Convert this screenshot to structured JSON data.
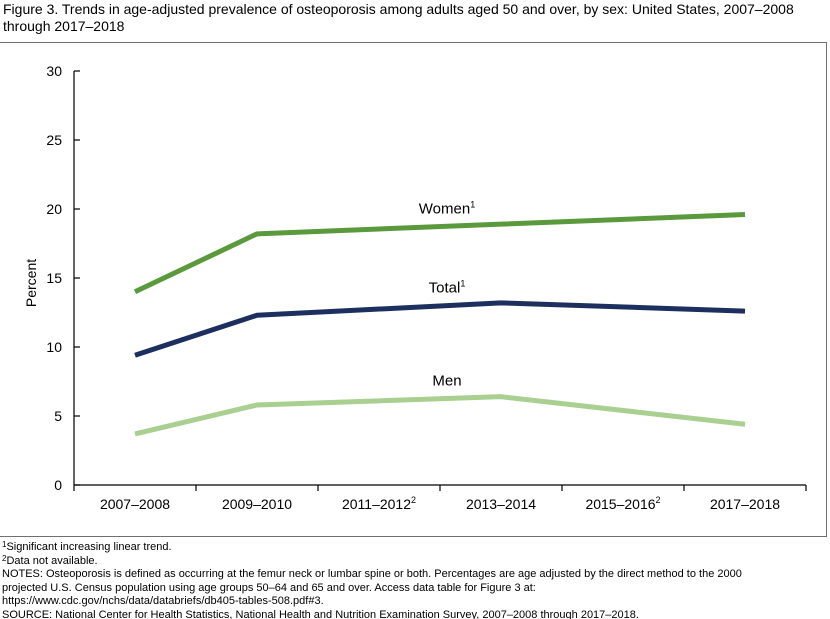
{
  "title": "Figure 3. Trends in age-adjusted prevalence of osteoporosis among adults aged 50 and over, by sex: United States, 2007–2008 through 2017–2018",
  "chart_data": {
    "type": "line",
    "title": "Trends in age-adjusted prevalence of osteoporosis among adults aged 50 and over, by sex: United States, 2007–2008 through 2017–2018",
    "xlabel": "",
    "ylabel": "Percent",
    "ylim": [
      0,
      30
    ],
    "yticks": [
      0,
      5,
      10,
      15,
      20,
      25,
      30
    ],
    "categories": [
      "2007–2008",
      "2009–2010",
      "2011–2012",
      "2013–2014",
      "2015–2016",
      "2017–2018"
    ],
    "category_superscripts": [
      "",
      "",
      "2",
      "",
      "2",
      ""
    ],
    "grid": false,
    "series": [
      {
        "name": "Women",
        "superscript": "1",
        "color": "#5a9a3d",
        "values": [
          14.0,
          18.2,
          null,
          18.9,
          null,
          19.6
        ]
      },
      {
        "name": "Total",
        "superscript": "1",
        "color": "#1c2f5e",
        "values": [
          9.4,
          12.3,
          null,
          13.2,
          null,
          12.6
        ]
      },
      {
        "name": "Men",
        "superscript": "",
        "color": "#a9cf91",
        "values": [
          3.7,
          5.8,
          null,
          6.4,
          null,
          4.4
        ]
      }
    ]
  },
  "footnotes": {
    "f1_mark": "1",
    "f1_text": "Significant increasing linear trend.",
    "f2_mark": "2",
    "f2_text": "Data not available.",
    "notes_1": "NOTES: Osteoporosis is defined as occurring at the femur neck or lumbar spine or both. Percentages are age adjusted by the direct method to the 2000",
    "notes_2": "projected U.S. Census population using age groups 50–64 and 65 and over. Access data table for Figure 3 at:",
    "notes_3": "https://www.cdc.gov/nchs/data/databriefs/db405-tables-508.pdf#3.",
    "source": "SOURCE: National Center for Health Statistics, National Health and Nutrition Examination Survey, 2007–2008 through 2017–2018."
  }
}
